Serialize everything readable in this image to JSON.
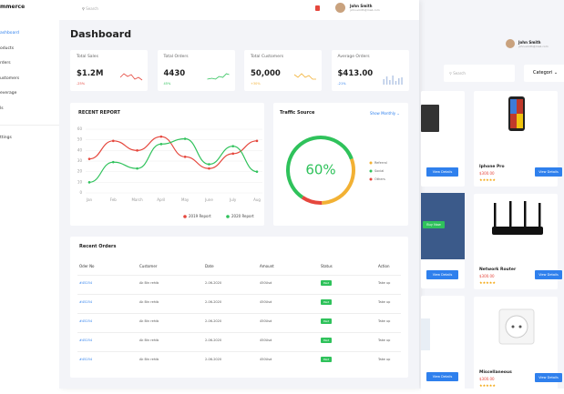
{
  "sidebar": {
    "logo": "mmerce",
    "menu": [
      "ashboard",
      "oducts",
      "rders",
      "ustomers",
      "everage",
      "ls",
      "ttings"
    ]
  },
  "topbar": {
    "search": "Search",
    "user_name": "John Smith",
    "user_email": "john.smith@mail.com"
  },
  "dashboard": {
    "title": "Dashboard",
    "stats": [
      {
        "label": "Total Sales",
        "value": "$1.2M",
        "change": "-25%"
      },
      {
        "label": "Total Orders",
        "value": "4430",
        "change": "45%"
      },
      {
        "label": "Total Customers",
        "value": "50,000",
        "change": "+30%"
      },
      {
        "label": "Average Orders",
        "value": "$413.00",
        "change": "-21%"
      }
    ],
    "recent_report": {
      "type": "line",
      "title": "RECENT REPORT",
      "categories": [
        "Jan",
        "Feb",
        "March",
        "April",
        "May",
        "June",
        "July",
        "Aug"
      ],
      "series": [
        {
          "name": "2019 Report",
          "color": "#e5473d",
          "values": [
            32,
            49,
            40,
            53,
            34,
            23,
            37,
            49
          ]
        },
        {
          "name": "2020 Report",
          "color": "#2fc25b",
          "values": [
            10,
            29,
            23,
            46,
            51,
            27,
            44,
            20
          ]
        }
      ],
      "ylim": [
        0,
        60
      ],
      "yticks": [
        0,
        10,
        20,
        30,
        40,
        50,
        60
      ],
      "grid": true
    },
    "traffic": {
      "type": "pie",
      "title": "Traffic Source",
      "filter": "Show Monthly",
      "center": {
        "value": 60,
        "label": "60%"
      },
      "series": [
        {
          "name": "Referral",
          "color": "#f2b134",
          "value": 30
        },
        {
          "name": "Social",
          "color": "#2fc25b",
          "value": 60
        },
        {
          "name": "Others",
          "color": "#e5473d",
          "value": 10
        }
      ]
    },
    "orders": {
      "title": "Recent Orders",
      "columns": [
        "Oder No",
        "Customer",
        "Date",
        "Amount",
        "Status",
        "Action"
      ],
      "rows": [
        [
          "#45254",
          "Ak Bin rehib",
          "2-06-2020",
          "450Usd",
          "Paid",
          "Take up"
        ],
        [
          "#45254",
          "Ak Bin rehib",
          "2-06-2020",
          "450Usd",
          "Paid",
          "Take up"
        ],
        [
          "#45254",
          "Ak Bin rehib",
          "2-06-2020",
          "450Usd",
          "Paid",
          "Take up"
        ],
        [
          "#45254",
          "Ak Bin rehib",
          "2-06-2020",
          "450Usd",
          "Paid",
          "Take up"
        ],
        [
          "#45254",
          "Ak Bin rehib",
          "2-06-2020",
          "450Usd",
          "Paid",
          "Take up"
        ]
      ]
    }
  },
  "shop": {
    "user_name": "John Smith",
    "user_email": "john.smith@mail.com",
    "search": "Search",
    "category": "Categori",
    "products": [
      {
        "name": "Iphone Pro",
        "price": "$300.00",
        "rating": "★★★★★",
        "button": "View Details"
      },
      {
        "name": "Network Router",
        "price": "$300.00",
        "rating": "★★★★★",
        "button": "View Details"
      },
      {
        "name": "Miscellaneous",
        "price": "$300.00",
        "rating": "★★★★★",
        "button": "View Details"
      }
    ],
    "left_buttons": [
      "View Details",
      "Buy Now",
      "View Details",
      "View Details"
    ]
  }
}
